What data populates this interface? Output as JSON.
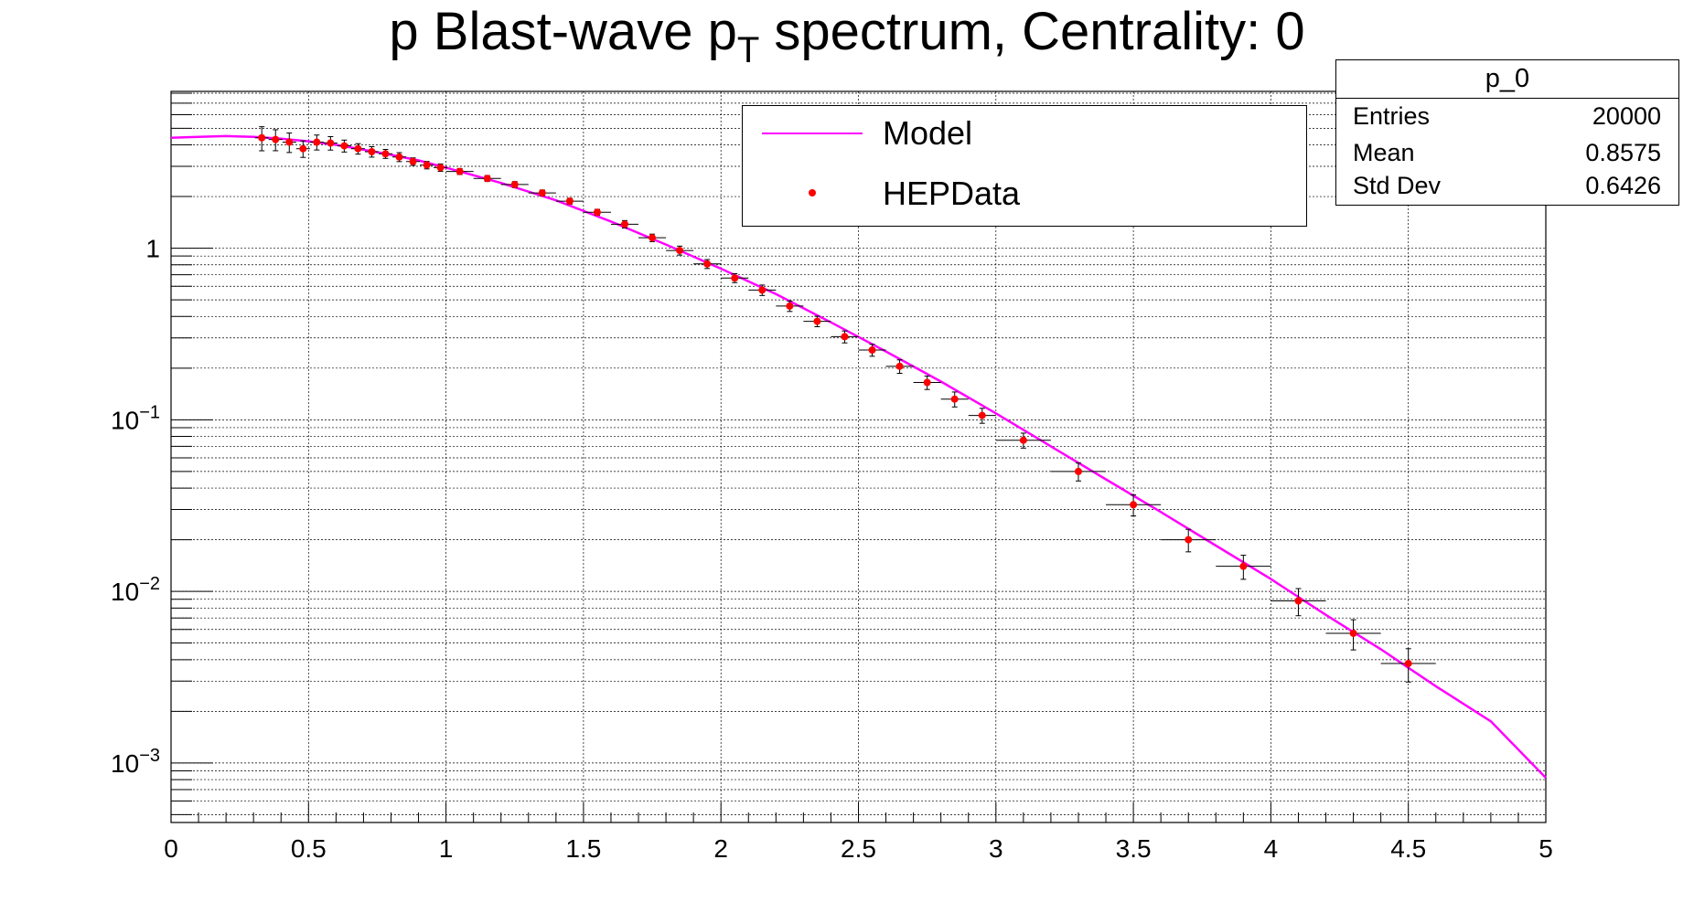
{
  "title_main": "p Blast-wave p",
  "title_sub": "T",
  "title_rest": " spectrum, Centrality: 0",
  "legend": {
    "model_label": "Model",
    "data_label": "HEPData"
  },
  "stats": {
    "title": "p_0",
    "rows": [
      {
        "label": "Entries",
        "value": "20000"
      },
      {
        "label": "Mean",
        "value": "0.8575"
      },
      {
        "label": "Std Dev",
        "value": "0.6426"
      }
    ]
  },
  "colors": {
    "model": "#ff00ff",
    "data": "#ff0000",
    "errors": "#000000",
    "grid": "#000000"
  },
  "chart_data": {
    "type": "scatter",
    "title": "p Blast-wave p_T spectrum, Centrality: 0",
    "xlim": [
      0,
      5
    ],
    "ylim": [
      0.00045,
      8.2
    ],
    "y_scale": "log",
    "grid": true,
    "legend_position": "top-center",
    "x_ticks": [
      {
        "value": 0,
        "label": "0"
      },
      {
        "value": 0.5,
        "label": "0.5"
      },
      {
        "value": 1,
        "label": "1"
      },
      {
        "value": 1.5,
        "label": "1.5"
      },
      {
        "value": 2,
        "label": "2"
      },
      {
        "value": 2.5,
        "label": "2.5"
      },
      {
        "value": 3,
        "label": "3"
      },
      {
        "value": 3.5,
        "label": "3.5"
      },
      {
        "value": 4,
        "label": "4"
      },
      {
        "value": 4.5,
        "label": "4.5"
      },
      {
        "value": 5,
        "label": "5"
      }
    ],
    "y_ticks": [
      {
        "value": 1,
        "base": "1",
        "exp": ""
      },
      {
        "value": 0.1,
        "base": "10",
        "exp": "−1"
      },
      {
        "value": 0.01,
        "base": "10",
        "exp": "−2"
      },
      {
        "value": 0.001,
        "base": "10",
        "exp": "−3"
      }
    ],
    "series": [
      {
        "name": "Model",
        "kind": "line",
        "x": [
          0,
          0.1,
          0.2,
          0.3,
          0.4,
          0.5,
          0.6,
          0.7,
          0.8,
          0.9,
          1.0,
          1.2,
          1.4,
          1.6,
          1.8,
          2.0,
          2.2,
          2.4,
          2.6,
          2.8,
          3.0,
          3.2,
          3.4,
          3.6,
          3.8,
          4.0,
          4.2,
          4.4,
          4.6,
          4.8,
          5.0
        ],
        "y": [
          4.4,
          4.45,
          4.5,
          4.45,
          4.35,
          4.2,
          4.0,
          3.75,
          3.5,
          3.25,
          2.95,
          2.4,
          1.9,
          1.43,
          1.05,
          0.76,
          0.54,
          0.37,
          0.25,
          0.167,
          0.109,
          0.07,
          0.045,
          0.029,
          0.0185,
          0.0118,
          0.0073,
          0.0046,
          0.0028,
          0.00175,
          0.00082
        ]
      },
      {
        "name": "HEPData",
        "kind": "points",
        "x": [
          0.33,
          0.38,
          0.43,
          0.48,
          0.53,
          0.58,
          0.63,
          0.68,
          0.73,
          0.78,
          0.83,
          0.88,
          0.93,
          0.98,
          1.05,
          1.15,
          1.25,
          1.35,
          1.45,
          1.55,
          1.65,
          1.75,
          1.85,
          1.95,
          2.05,
          2.15,
          2.25,
          2.35,
          2.45,
          2.55,
          2.65,
          2.75,
          2.85,
          2.95,
          3.1,
          3.3,
          3.5,
          3.7,
          3.9,
          4.1,
          4.3,
          4.5
        ],
        "y": [
          4.4,
          4.3,
          4.15,
          3.8,
          4.15,
          4.1,
          3.95,
          3.8,
          3.65,
          3.55,
          3.4,
          3.2,
          3.05,
          2.95,
          2.8,
          2.55,
          2.35,
          2.1,
          1.88,
          1.62,
          1.38,
          1.15,
          0.97,
          0.81,
          0.67,
          0.57,
          0.46,
          0.375,
          0.305,
          0.255,
          0.205,
          0.165,
          0.132,
          0.106,
          0.076,
          0.05,
          0.032,
          0.02,
          0.014,
          0.0088,
          0.0057,
          0.0038
        ],
        "xerr": [
          0.025,
          0.025,
          0.025,
          0.025,
          0.025,
          0.025,
          0.025,
          0.025,
          0.025,
          0.025,
          0.025,
          0.025,
          0.025,
          0.025,
          0.05,
          0.05,
          0.05,
          0.05,
          0.05,
          0.05,
          0.05,
          0.05,
          0.05,
          0.05,
          0.05,
          0.05,
          0.05,
          0.05,
          0.05,
          0.05,
          0.05,
          0.05,
          0.05,
          0.05,
          0.1,
          0.1,
          0.1,
          0.1,
          0.1,
          0.1,
          0.1,
          0.1
        ],
        "yerr_rel": [
          0.16,
          0.14,
          0.13,
          0.11,
          0.1,
          0.09,
          0.08,
          0.07,
          0.07,
          0.06,
          0.06,
          0.05,
          0.05,
          0.05,
          0.04,
          0.04,
          0.04,
          0.04,
          0.04,
          0.04,
          0.05,
          0.05,
          0.06,
          0.06,
          0.06,
          0.07,
          0.07,
          0.07,
          0.08,
          0.08,
          0.09,
          0.09,
          0.1,
          0.1,
          0.1,
          0.12,
          0.14,
          0.15,
          0.16,
          0.18,
          0.2,
          0.22
        ]
      }
    ]
  }
}
